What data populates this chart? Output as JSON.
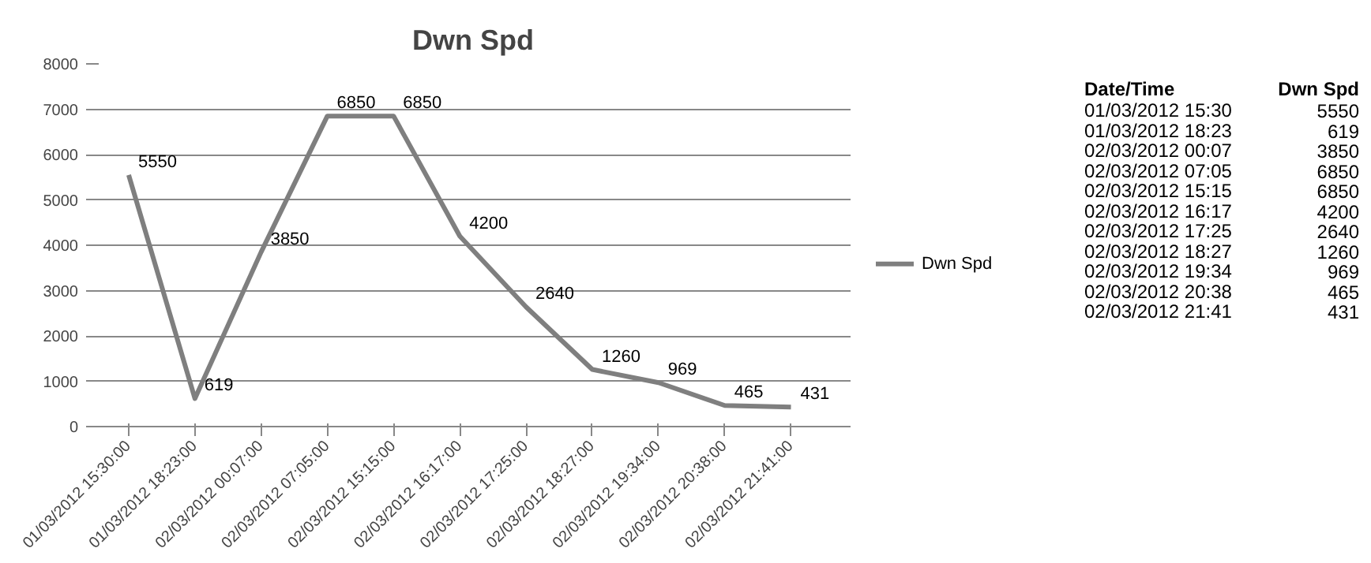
{
  "chart_data": {
    "type": "line",
    "title": "Dwn Spd",
    "categories": [
      "01/03/2012 15:30:00",
      "01/03/2012 18:23:00",
      "02/03/2012 00:07:00",
      "02/03/2012 07:05:00",
      "02/03/2012 15:15:00",
      "02/03/2012 16:17:00",
      "02/03/2012 17:25:00",
      "02/03/2012 18:27:00",
      "02/03/2012 19:34:00",
      "02/03/2012 20:38:00",
      "02/03/2012 21:41:00"
    ],
    "series": [
      {
        "name": "Dwn Spd",
        "color": "#7f7f7f",
        "values": [
          5550,
          619,
          3850,
          6850,
          6850,
          4200,
          2640,
          1260,
          969,
          465,
          431
        ]
      }
    ],
    "ylim": [
      0,
      8000
    ],
    "yticks": [
      0,
      1000,
      2000,
      3000,
      4000,
      5000,
      6000,
      7000,
      8000
    ],
    "grid": "y",
    "legend": "right",
    "data_labels": true,
    "line_style": "solid",
    "marker": "none",
    "annotations": [
      "Date/Time",
      "Dwn Spd",
      "01/03/2012 15:30",
      "01/03/2012 18:23",
      "02/03/2012 00:07",
      "02/03/2012 07:05",
      "02/03/2012 15:15",
      "02/03/2012 16:17",
      "02/03/2012 17:25",
      "02/03/2012 18:27",
      "02/03/2012 19:34",
      "02/03/2012 20:38",
      "02/03/2012 21:41",
      "5550",
      "619",
      "3850",
      "6850",
      "6850",
      "4200",
      "2640",
      "1260",
      "969",
      "465",
      "431"
    ]
  }
}
